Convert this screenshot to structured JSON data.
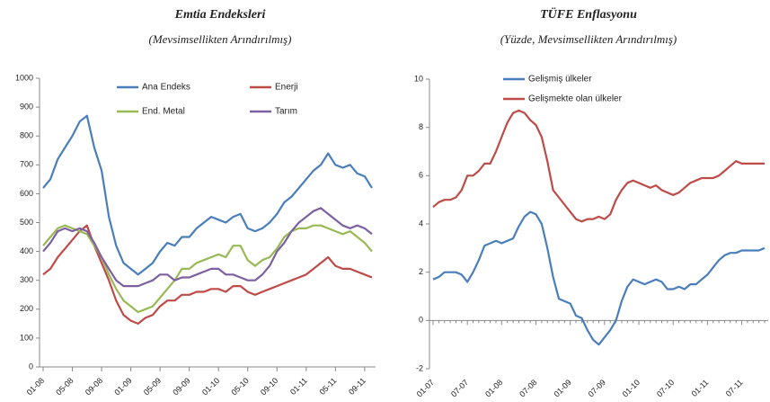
{
  "chart_data": [
    {
      "type": "line",
      "title": "Emtia Endeksleri",
      "subtitle": "(Mevsimsellikten Arındırılmış)",
      "categories": [
        "01-08",
        null,
        null,
        null,
        "05-08",
        null,
        null,
        null,
        "09-08",
        null,
        null,
        null,
        "01-09",
        null,
        null,
        null,
        "05-09",
        null,
        null,
        null,
        "09-09",
        null,
        null,
        null,
        "01-10",
        null,
        null,
        null,
        "05-10",
        null,
        null,
        null,
        "09-10",
        null,
        null,
        null,
        "01-11",
        null,
        null,
        null,
        "05-11",
        null,
        null,
        null,
        "09-11",
        null
      ],
      "series": [
        {
          "name": "Ana Endeks",
          "color": "#4a7ebb",
          "values": [
            620,
            650,
            720,
            760,
            800,
            850,
            870,
            760,
            680,
            520,
            420,
            360,
            340,
            320,
            340,
            360,
            400,
            430,
            420,
            450,
            450,
            480,
            500,
            520,
            510,
            500,
            520,
            530,
            480,
            470,
            480,
            500,
            530,
            570,
            590,
            620,
            650,
            680,
            700,
            740,
            700,
            690,
            700,
            670,
            660,
            620
          ]
        },
        {
          "name": "Enerji",
          "color": "#be4b48",
          "values": [
            320,
            340,
            380,
            410,
            440,
            470,
            490,
            420,
            360,
            300,
            230,
            180,
            160,
            150,
            170,
            180,
            210,
            230,
            230,
            250,
            250,
            260,
            260,
            270,
            270,
            260,
            280,
            280,
            260,
            250,
            260,
            270,
            280,
            290,
            300,
            310,
            320,
            340,
            360,
            380,
            350,
            340,
            340,
            330,
            320,
            310
          ]
        },
        {
          "name": "End. Metal",
          "color": "#98b954",
          "values": [
            420,
            450,
            480,
            490,
            480,
            470,
            460,
            420,
            380,
            320,
            270,
            230,
            210,
            190,
            200,
            210,
            240,
            270,
            300,
            340,
            340,
            360,
            370,
            380,
            390,
            380,
            420,
            420,
            370,
            350,
            370,
            380,
            410,
            450,
            470,
            480,
            480,
            490,
            490,
            480,
            470,
            460,
            470,
            450,
            430,
            400
          ]
        },
        {
          "name": "Tarım",
          "color": "#7d60a0",
          "values": [
            400,
            430,
            470,
            480,
            470,
            480,
            470,
            430,
            380,
            340,
            300,
            280,
            280,
            280,
            290,
            300,
            320,
            320,
            300,
            310,
            310,
            320,
            330,
            340,
            340,
            320,
            320,
            310,
            300,
            300,
            320,
            350,
            400,
            430,
            470,
            500,
            520,
            540,
            550,
            530,
            510,
            490,
            480,
            490,
            480,
            460
          ]
        }
      ],
      "ylim": [
        0,
        1000
      ],
      "yticks": [
        0,
        100,
        200,
        300,
        400,
        500,
        600,
        700,
        800,
        900,
        1000
      ]
    },
    {
      "type": "line",
      "title": "TÜFE Enflasyonu",
      "subtitle": "(Yüzde, Mevsimsellikten Arındırılmış)",
      "categories": [
        "01-07",
        null,
        null,
        null,
        null,
        null,
        "07-07",
        null,
        null,
        null,
        null,
        null,
        "01-08",
        null,
        null,
        null,
        null,
        null,
        "07-08",
        null,
        null,
        null,
        null,
        null,
        "01-09",
        null,
        null,
        null,
        null,
        null,
        "07-09",
        null,
        null,
        null,
        null,
        null,
        "01-10",
        null,
        null,
        null,
        null,
        null,
        "07-10",
        null,
        null,
        null,
        null,
        null,
        "01-11",
        null,
        null,
        null,
        null,
        null,
        "07-11",
        null,
        null,
        null,
        null
      ],
      "series": [
        {
          "name": "Gelişmiş ülkeler",
          "color": "#4a7ebb",
          "values": [
            1.7,
            1.8,
            2.0,
            2.0,
            2.0,
            1.9,
            1.6,
            2.0,
            2.5,
            3.1,
            3.2,
            3.3,
            3.2,
            3.3,
            3.4,
            3.9,
            4.3,
            4.5,
            4.4,
            4.0,
            3.0,
            1.8,
            0.9,
            0.8,
            0.7,
            0.2,
            0.1,
            -0.4,
            -0.8,
            -1.0,
            -0.7,
            -0.4,
            0.0,
            0.8,
            1.4,
            1.7,
            1.6,
            1.5,
            1.6,
            1.7,
            1.6,
            1.3,
            1.3,
            1.4,
            1.3,
            1.5,
            1.5,
            1.7,
            1.9,
            2.2,
            2.5,
            2.7,
            2.8,
            2.8,
            2.9,
            2.9,
            2.9,
            2.9,
            3.0
          ]
        },
        {
          "name": "Gelişmekte olan ülkeler",
          "color": "#be4b48",
          "values": [
            4.7,
            4.9,
            5.0,
            5.0,
            5.1,
            5.4,
            6.0,
            6.0,
            6.2,
            6.5,
            6.5,
            7.0,
            7.6,
            8.2,
            8.6,
            8.7,
            8.6,
            8.3,
            8.1,
            7.6,
            6.6,
            5.4,
            5.1,
            4.8,
            4.5,
            4.2,
            4.1,
            4.2,
            4.2,
            4.3,
            4.2,
            4.4,
            5.0,
            5.4,
            5.7,
            5.8,
            5.7,
            5.6,
            5.5,
            5.6,
            5.4,
            5.3,
            5.2,
            5.3,
            5.5,
            5.7,
            5.8,
            5.9,
            5.9,
            5.9,
            6.0,
            6.2,
            6.4,
            6.6,
            6.5,
            6.5,
            6.5,
            6.5,
            6.5
          ]
        }
      ],
      "ylim": [
        -2,
        10
      ],
      "yticks": [
        -2,
        0,
        2,
        4,
        6,
        8,
        10
      ]
    }
  ]
}
